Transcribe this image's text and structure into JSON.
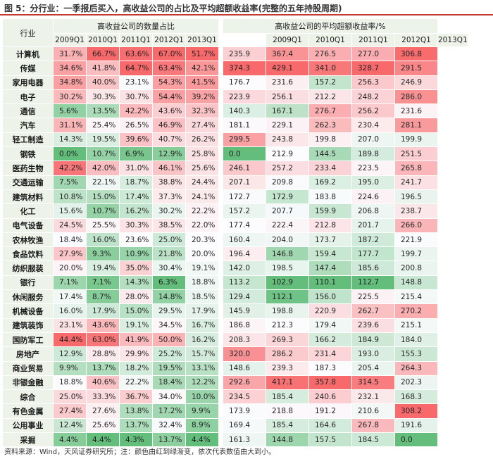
{
  "title": "图 5：分行业：一季报后买入，高收益公司的占比及平均超额收益率(完整的五年持股周期)",
  "note": "资料来源：Wind，天风证券研究所；注：颜色由红到绿渐变，依次代表数值由大到小。",
  "table_header": {
    "industry": "行业",
    "group_ratio": "高收益公司的数量占比",
    "group_return": "高收益公司的平均超额收益率/%"
  },
  "chart_data": {
    "type": "table",
    "title": "分行业：一季报后买入，高收益公司的占比及平均超额收益率(完整的五年持股周期)",
    "periods": [
      "2009Q1",
      "2010Q1",
      "2011Q1",
      "2012Q1",
      "2013Q1"
    ],
    "rows": [
      {
        "industry": "计算机",
        "ratio": [
          "31.7%",
          "66.7%",
          "63.6%",
          "67.0%",
          "51.7%"
        ],
        "ret": [
          "235.9",
          "367.4",
          "276.5",
          "277.0",
          "306.8"
        ]
      },
      {
        "industry": "传媒",
        "ratio": [
          "34.6%",
          "41.8%",
          "64.7%",
          "63.4%",
          "42.1%"
        ],
        "ret": [
          "374.3",
          "429.1",
          "341.0",
          "328.7",
          "291.5"
        ]
      },
      {
        "industry": "家用电器",
        "ratio": [
          "34.8%",
          "40.0%",
          "23.1%",
          "54.3%",
          "41.5%"
        ],
        "ret": [
          "176.7",
          "231.6",
          "157.2",
          "256.3",
          "246.9"
        ]
      },
      {
        "industry": "电子",
        "ratio": [
          "30.2%",
          "30.3%",
          "30.7%",
          "54.4%",
          "39.2%"
        ],
        "ret": [
          "223.9",
          "256.1",
          "212.2",
          "248.2",
          "286.0"
        ]
      },
      {
        "industry": "通信",
        "ratio": [
          "5.6%",
          "13.5%",
          "42.2%",
          "43.6%",
          "32.3%"
        ],
        "ret": [
          "140.3",
          "167.1",
          "276.7",
          "256.2",
          "231.6"
        ]
      },
      {
        "industry": "汽车",
        "ratio": [
          "31.1%",
          "25.4%",
          "26.5%",
          "46.9%",
          "27.4%"
        ],
        "ret": [
          "181.1",
          "229.1",
          "262.3",
          "230.4",
          "281.1"
        ]
      },
      {
        "industry": "轻工制造",
        "ratio": [
          "14.3%",
          "19.5%",
          "39.6%",
          "40.7%",
          "26.2%"
        ],
        "ret": [
          "299.5",
          "243.8",
          "199.8",
          "207.0",
          "199.9"
        ]
      },
      {
        "industry": "钢铁",
        "ratio": [
          "0.0%",
          "10.7%",
          "6.9%",
          "12.9%",
          "25.8%"
        ],
        "ret": [
          "0.0",
          "212.9",
          "144.5",
          "189.8",
          "251.5"
        ]
      },
      {
        "industry": "医药生物",
        "ratio": [
          "42.2%",
          "42.0%",
          "31.0%",
          "46.1%",
          "25.6%"
        ],
        "ret": [
          "246.1",
          "257.2",
          "233.4",
          "223.5",
          "265.8"
        ]
      },
      {
        "industry": "交通运输",
        "ratio": [
          "7.5%",
          "22.1%",
          "18.7%",
          "38.8%",
          "24.4%"
        ],
        "ret": [
          "207.1",
          "209.8",
          "169.2",
          "195.0",
          "241.7"
        ]
      },
      {
        "industry": "建筑材料",
        "ratio": [
          "10.8%",
          "15.0%",
          "17.4%",
          "37.3%",
          "24.1%"
        ],
        "ret": [
          "172.7",
          "172.9",
          "183.8",
          "224.6",
          "196.5"
        ]
      },
      {
        "industry": "化工",
        "ratio": [
          "15.6%",
          "10.7%",
          "16.2%",
          "30.2%",
          "22.2%"
        ],
        "ret": [
          "157.2",
          "207.7",
          "159.9",
          "206.8",
          "238.7"
        ]
      },
      {
        "industry": "电气设备",
        "ratio": [
          "24.5%",
          "25.5%",
          "30.3%",
          "38.5%",
          "22.0%"
        ],
        "ret": [
          "177.4",
          "222.4",
          "212.8",
          "201.7",
          "266.0"
        ]
      },
      {
        "industry": "农林牧渔",
        "ratio": [
          "18.4%",
          "16.0%",
          "23.6%",
          "25.0%",
          "20.3%"
        ],
        "ret": [
          "160.4",
          "204.0",
          "173.7",
          "187.2",
          "221.9"
        ]
      },
      {
        "industry": "食品饮料",
        "ratio": [
          "27.9%",
          "9.3%",
          "10.9%",
          "21.8%",
          "20.0%"
        ],
        "ret": [
          "196.4",
          "146.8",
          "159.4",
          "177.7",
          "199.7"
        ]
      },
      {
        "industry": "纺织服装",
        "ratio": [
          "20.0%",
          "19.4%",
          "35.0%",
          "30.4%",
          "19.1%"
        ],
        "ret": [
          "142.0",
          "198.5",
          "147.4",
          "185.6",
          "200.8"
        ]
      },
      {
        "industry": "银行",
        "ratio": [
          "7.1%",
          "7.1%",
          "14.3%",
          "6.3%",
          "18.8%"
        ],
        "ret": [
          "113.2",
          "102.9",
          "110.1",
          "112.7",
          "148.8"
        ]
      },
      {
        "industry": "休闲服务",
        "ratio": [
          "17.4%",
          "8.7%",
          "28.0%",
          "14.8%",
          "18.5%"
        ],
        "ret": [
          "129.4",
          "112.1",
          "156.0",
          "225.5",
          "215.4"
        ]
      },
      {
        "industry": "机械设备",
        "ratio": [
          "16.0%",
          "17.9%",
          "15.0%",
          "29.5%",
          "17.9%"
        ],
        "ret": [
          "145.9",
          "198.8",
          "220.9",
          "262.7",
          "270.2"
        ]
      },
      {
        "industry": "建筑装饰",
        "ratio": [
          "23.1%",
          "43.6%",
          "19.1%",
          "34.5%",
          "16.7%"
        ],
        "ret": [
          "186.8",
          "212.3",
          "179.4",
          "239.6",
          "215.1"
        ]
      },
      {
        "industry": "国防军工",
        "ratio": [
          "44.4%",
          "63.0%",
          "41.9%",
          "50.0%",
          "16.2%"
        ],
        "ret": [
          "208.3",
          "269.3",
          "166.2",
          "184.9",
          "184.0"
        ]
      },
      {
        "industry": "房地产",
        "ratio": [
          "12.9%",
          "28.8%",
          "29.9%",
          "25.2%",
          "15.7%"
        ],
        "ret": [
          "320.0",
          "286.2",
          "231.4",
          "193.0",
          "155.3"
        ]
      },
      {
        "industry": "商业贸易",
        "ratio": [
          "9.9%",
          "13.7%",
          "18.2%",
          "19.5%",
          "13.1%"
        ],
        "ret": [
          "148.6",
          "239.3",
          "187.3",
          "205.4",
          "264.3"
        ]
      },
      {
        "industry": "非银金融",
        "ratio": [
          "18.8%",
          "40.6%",
          "22.2%",
          "18.4%",
          "12.2%"
        ],
        "ret": [
          "292.6",
          "417.1",
          "357.8",
          "314.5",
          "202.3"
        ]
      },
      {
        "industry": "综合",
        "ratio": [
          "25.0%",
          "33.3%",
          "36.7%",
          "34.0%",
          "10.0%"
        ],
        "ret": [
          "234.5",
          "185.4",
          "240.6",
          "232.1",
          "168.3"
        ]
      },
      {
        "industry": "有色金属",
        "ratio": [
          "27.4%",
          "27.6%",
          "13.8%",
          "17.2%",
          "9.9%"
        ],
        "ret": [
          "173.9",
          "218.8",
          "191.2",
          "210.6",
          "308.2"
        ]
      },
      {
        "industry": "公用事业",
        "ratio": [
          "12.4%",
          "25.6%",
          "13.7%",
          "32.4%",
          "8.9%"
        ],
        "ret": [
          "169.4",
          "185.4",
          "164.6",
          "267.8",
          "191.6"
        ]
      },
      {
        "industry": "采掘",
        "ratio": [
          "4.4%",
          "4.4%",
          "4.3%",
          "13.7%",
          "4.4%"
        ],
        "ret": [
          "161.3",
          "144.8",
          "157.5",
          "184.5",
          "0.0"
        ]
      }
    ]
  }
}
